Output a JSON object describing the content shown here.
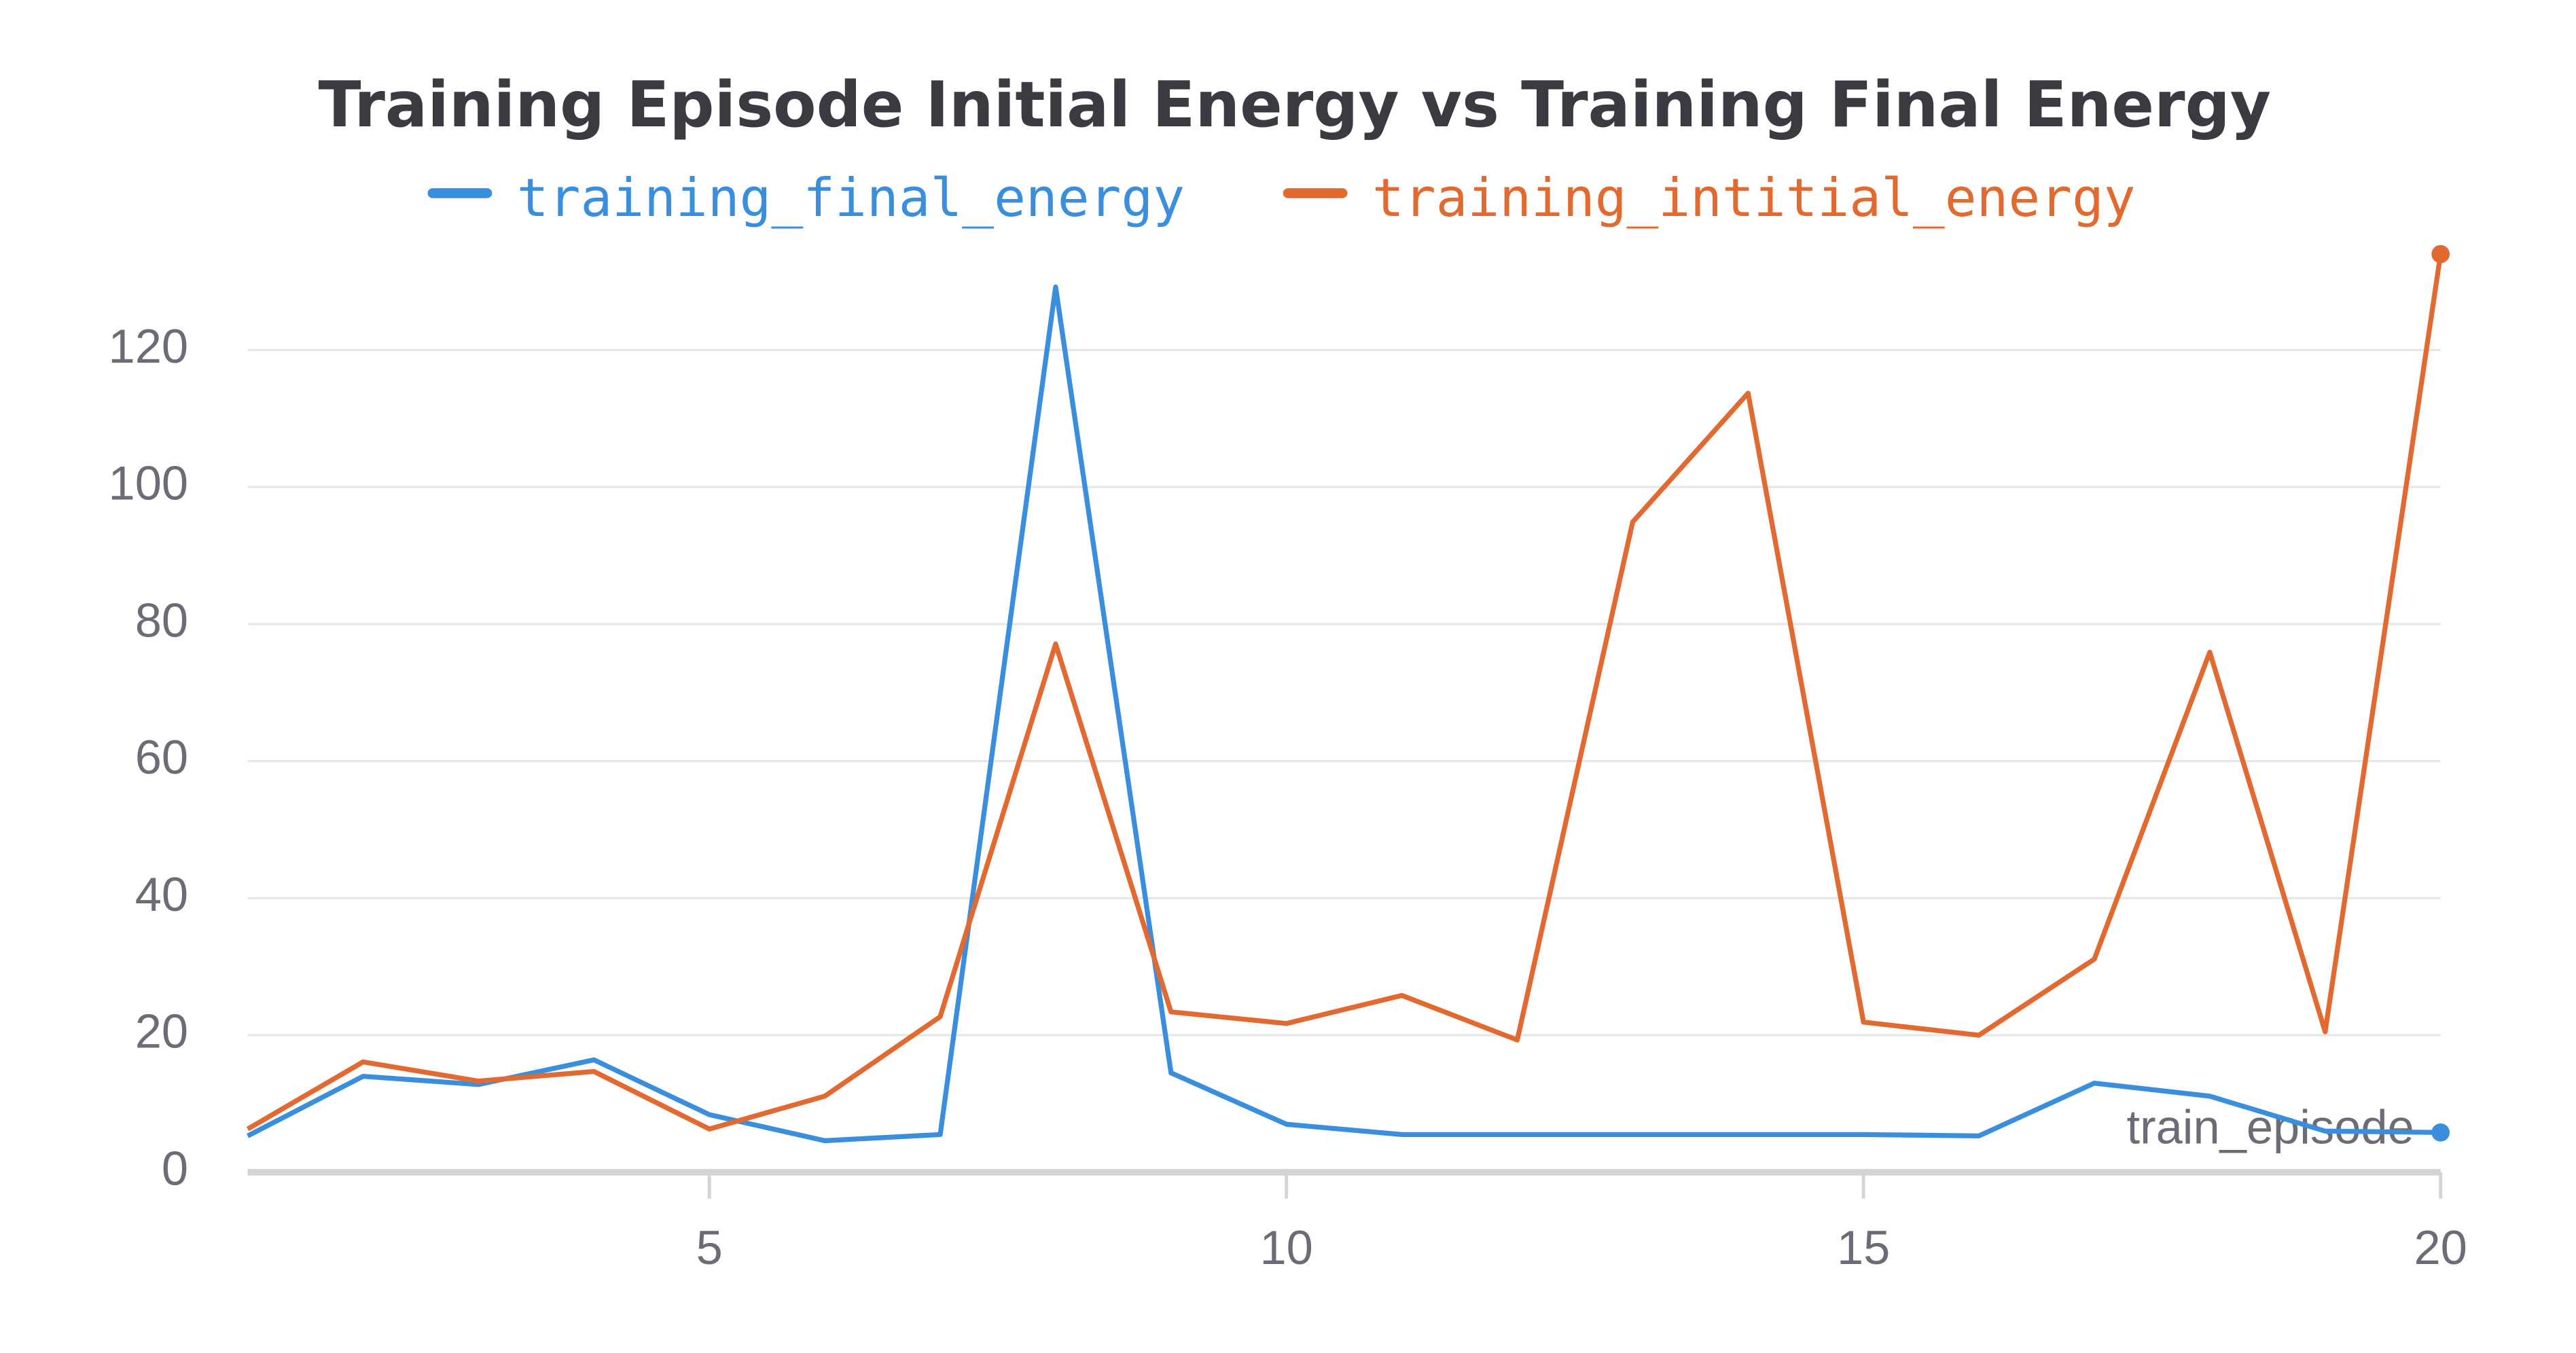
{
  "chart_data": {
    "type": "line",
    "title": "Training Episode Initial Energy vs Training Final Energy",
    "x_label": "train_episode",
    "x": [
      1,
      2,
      3,
      4,
      5,
      6,
      7,
      8,
      9,
      10,
      11,
      12,
      13,
      14,
      15,
      16,
      17,
      18,
      19,
      20
    ],
    "series": [
      {
        "name": "training_final_energy",
        "color": "#3a8ede",
        "values": [
          5.3,
          14,
          12.8,
          16.4,
          8.4,
          4.6,
          5.5,
          129.2,
          14.5,
          7,
          5.5,
          5.5,
          5.5,
          5.5,
          5.5,
          5.3,
          13,
          11.1,
          6,
          5.8
        ]
      },
      {
        "name": "training_intitial_energy",
        "color": "#e2692f",
        "values": [
          6.3,
          16.1,
          13.3,
          14.7,
          6.3,
          11.1,
          22.7,
          77.1,
          23.4,
          21.7,
          25.8,
          19.3,
          94.9,
          113.7,
          21.9,
          20,
          31.1,
          75.9,
          20.5,
          134
        ]
      }
    ],
    "xlim": [
      1,
      20
    ],
    "xticks": [
      5,
      10,
      15,
      20
    ],
    "ylim": [
      0,
      135
    ],
    "yticks": [
      0,
      20,
      40,
      60,
      80,
      100,
      120
    ],
    "grid": true
  }
}
